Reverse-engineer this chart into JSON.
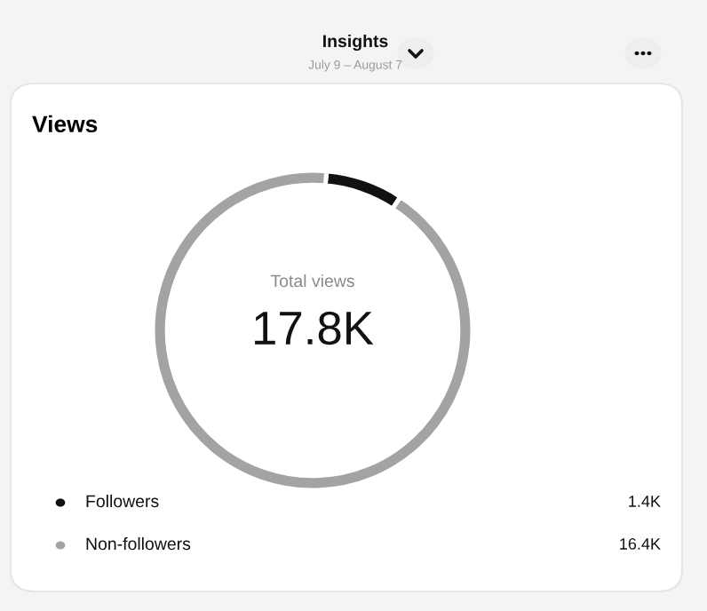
{
  "chart_data": {
    "type": "donut",
    "title": "Views",
    "annotations": [
      "Insights",
      "July 9 – August 7",
      "Total views",
      "17.8K"
    ],
    "categories": [
      "Followers",
      "Non-followers"
    ],
    "values": [
      1.4,
      16.4
    ],
    "value_labels": [
      "1.4K",
      "16.4K"
    ],
    "colors": [
      "#111111",
      "#a3a3a3"
    ],
    "legend": "bottom"
  }
}
